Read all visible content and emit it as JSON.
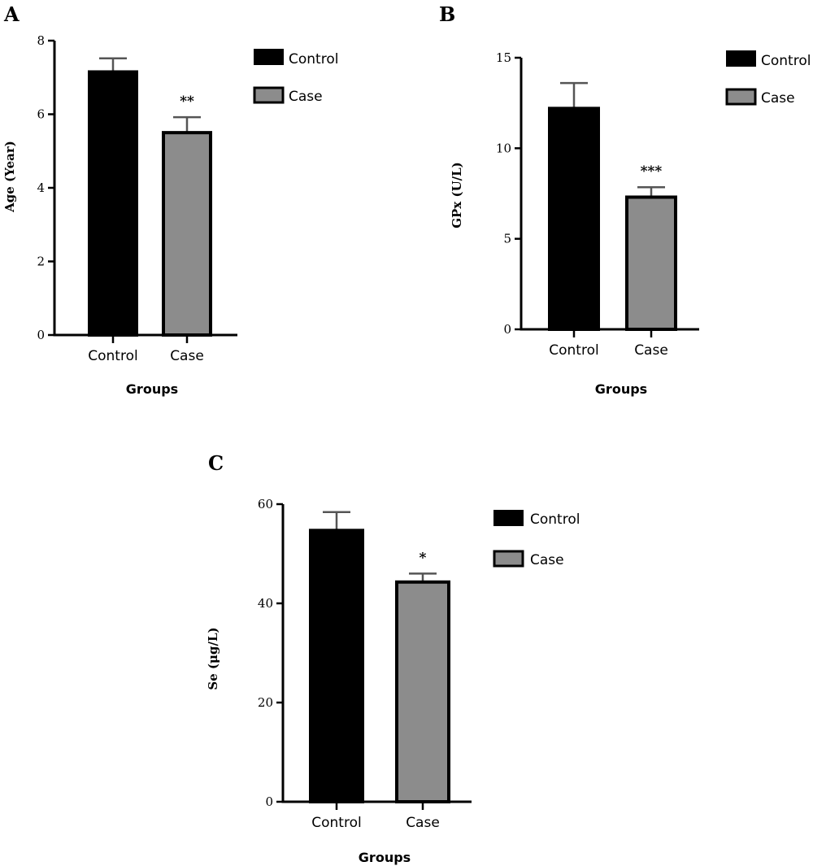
{
  "colors": {
    "control": "#000000",
    "case": "#8c8c8c",
    "axis": "#000000",
    "errorbar": "#555555"
  },
  "chart_data": [
    {
      "panel": "A",
      "type": "bar",
      "categories": [
        "Control",
        "Case"
      ],
      "values": [
        7.15,
        5.5
      ],
      "errors": [
        0.37,
        0.42
      ],
      "significance": [
        "",
        "**"
      ],
      "ylim": [
        0,
        8
      ],
      "yticks": [
        0,
        2,
        4,
        6,
        8
      ],
      "ylabel": "Age (Year)",
      "xlabel": "Groups",
      "legend": [
        "Control",
        "Case"
      ],
      "legend_position": "right"
    },
    {
      "panel": "B",
      "type": "bar",
      "categories": [
        "Control",
        "Case"
      ],
      "values": [
        12.2,
        7.3
      ],
      "errors": [
        1.4,
        0.55
      ],
      "significance": [
        "",
        "***"
      ],
      "ylim": [
        0,
        15
      ],
      "yticks": [
        0,
        5,
        10,
        15
      ],
      "ylabel": "GPx (U/L)",
      "xlabel": "Groups",
      "legend": [
        "Control",
        "Case"
      ],
      "legend_position": "right"
    },
    {
      "panel": "C",
      "type": "bar",
      "categories": [
        "Control",
        "Case"
      ],
      "values": [
        54.7,
        44.3
      ],
      "errors": [
        3.7,
        1.7
      ],
      "significance": [
        "",
        "*"
      ],
      "ylim": [
        0,
        60
      ],
      "yticks": [
        0,
        20,
        40,
        60
      ],
      "ylabel": "Se (μg/L)",
      "xlabel": "Groups",
      "legend": [
        "Control",
        "Case"
      ],
      "legend_position": "right"
    }
  ]
}
